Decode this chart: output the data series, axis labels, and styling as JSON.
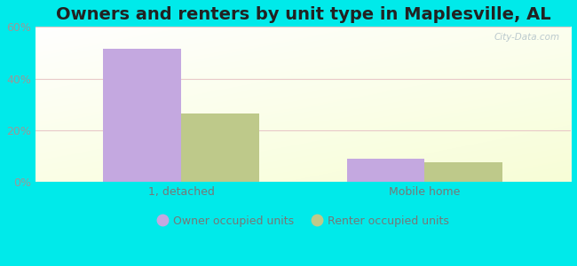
{
  "title": "Owners and renters by unit type in Maplesville, AL",
  "categories": [
    "1, detached",
    "Mobile home"
  ],
  "owner_values": [
    51.5,
    9.0
  ],
  "renter_values": [
    26.5,
    7.5
  ],
  "owner_color": "#c4a8e0",
  "renter_color": "#bec98a",
  "ylim": [
    0,
    60
  ],
  "yticks": [
    0,
    20,
    40,
    60
  ],
  "ytick_labels": [
    "0%",
    "20%",
    "40%",
    "60%"
  ],
  "background_outer": "#00eaea",
  "watermark": "City-Data.com",
  "legend_owner": "Owner occupied units",
  "legend_renter": "Renter occupied units",
  "bar_width": 0.32,
  "title_fontsize": 14,
  "grid_color": "#e8c8c8",
  "tick_color": "#999999",
  "label_color": "#777777"
}
